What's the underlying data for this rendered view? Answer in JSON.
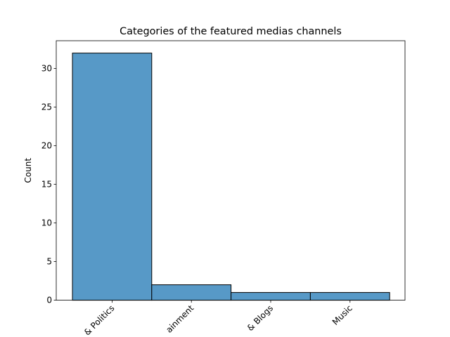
{
  "chart_data": {
    "type": "bar",
    "title": "Categories of the featured medias channels",
    "xlabel": "",
    "ylabel": "Count",
    "categories": [
      "News & Politics",
      "Entertainment",
      "People & Blogs",
      "Music"
    ],
    "category_tick_labels": [
      "& Politics",
      "ainment",
      "& Blogs",
      "Music"
    ],
    "values": [
      32,
      2,
      1,
      1
    ],
    "ylim": [
      0,
      33.6
    ],
    "yticks": [
      0,
      5,
      10,
      15,
      20,
      25,
      30
    ],
    "grid": false,
    "legend": "none",
    "bar_color": "#5799c7",
    "bar_edge_color": "#000000"
  }
}
